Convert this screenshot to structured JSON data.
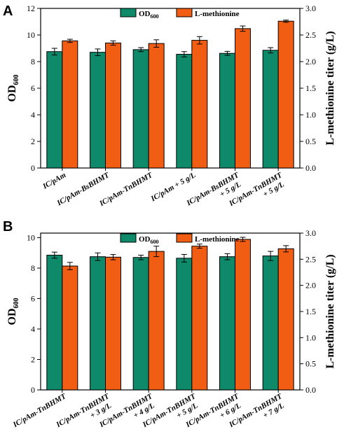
{
  "colors": {
    "od": "#0e8a6a",
    "met": "#f25d14",
    "axis": "#000000"
  },
  "chart_data": [
    {
      "type": "bar",
      "panel": "A",
      "categories": [
        [
          "IC/pAm"
        ],
        [
          "IC/pAm-BsBHMT"
        ],
        [
          "IC/pAm-TnBHMT"
        ],
        [
          "IC/pAm + 5 g/L"
        ],
        [
          "IC/pAm-BsBHMT",
          "+ 5 g/L"
        ],
        [
          "IC/pAm-TnBHMT",
          "+ 5 g/L"
        ]
      ],
      "series": [
        {
          "name": "OD600",
          "name_main": "OD",
          "name_sub": "600",
          "axis": "left",
          "values": [
            8.75,
            8.7,
            8.9,
            8.55,
            8.62,
            8.85
          ],
          "errors": [
            0.25,
            0.25,
            0.15,
            0.2,
            0.15,
            0.2
          ]
        },
        {
          "name": "L-methionine",
          "axis": "right",
          "values": [
            2.39,
            2.35,
            2.34,
            2.4,
            2.62,
            2.76
          ],
          "errors": [
            0.03,
            0.04,
            0.07,
            0.07,
            0.05,
            0.02
          ]
        }
      ],
      "ylabel_left": {
        "main": "OD",
        "sub": "600"
      },
      "ylabel_right": "L-methionine titer (g/L)",
      "ylim_left": [
        0,
        12
      ],
      "ylim_right": [
        0,
        3.0
      ],
      "yticks_left": [
        "0",
        "2",
        "4",
        "6",
        "8",
        "10",
        "12"
      ],
      "yticks_right": [
        "0.0",
        "0.5",
        "1.0",
        "1.5",
        "2.0",
        "2.5",
        "3.0"
      ],
      "legend_position": "top-center",
      "grid": false
    },
    {
      "type": "bar",
      "panel": "B",
      "categories": [
        [
          "IC/pAm-TnBHMT"
        ],
        [
          "IC/pAm-TnBHMT",
          "+ 3 g/L"
        ],
        [
          "IC/pAm-TnBHMT",
          "+ 4 g/L"
        ],
        [
          "IC/pAm-TnBHMT",
          "+ 5 g/L"
        ],
        [
          "IC/pAm-TnBHMT",
          "+ 6 g/L"
        ],
        [
          "IC/pAm-TnBHMT",
          "+ 7 g/L"
        ]
      ],
      "series": [
        {
          "name": "OD600",
          "name_main": "OD",
          "name_sub": "600",
          "axis": "left",
          "values": [
            8.85,
            8.75,
            8.7,
            8.65,
            8.75,
            8.8
          ],
          "errors": [
            0.2,
            0.25,
            0.15,
            0.25,
            0.2,
            0.3
          ]
        },
        {
          "name": "L-methionine",
          "axis": "right",
          "values": [
            2.37,
            2.54,
            2.65,
            2.75,
            2.88,
            2.7
          ],
          "errors": [
            0.07,
            0.05,
            0.1,
            0.04,
            0.04,
            0.06
          ]
        }
      ],
      "ylabel_left": {
        "main": "OD",
        "sub": "600"
      },
      "ylabel_right": "L-methionine titer (g/L)",
      "ylim_left": [
        0,
        10.3
      ],
      "ylim_right": [
        0,
        3.0
      ],
      "yticks_left": [
        "0",
        "2",
        "4",
        "6",
        "8",
        "10"
      ],
      "yticks_right": [
        "0.0",
        "0.5",
        "1.0",
        "1.5",
        "2.0",
        "2.5",
        "3.0"
      ],
      "legend_position": "top-center",
      "grid": false
    }
  ]
}
